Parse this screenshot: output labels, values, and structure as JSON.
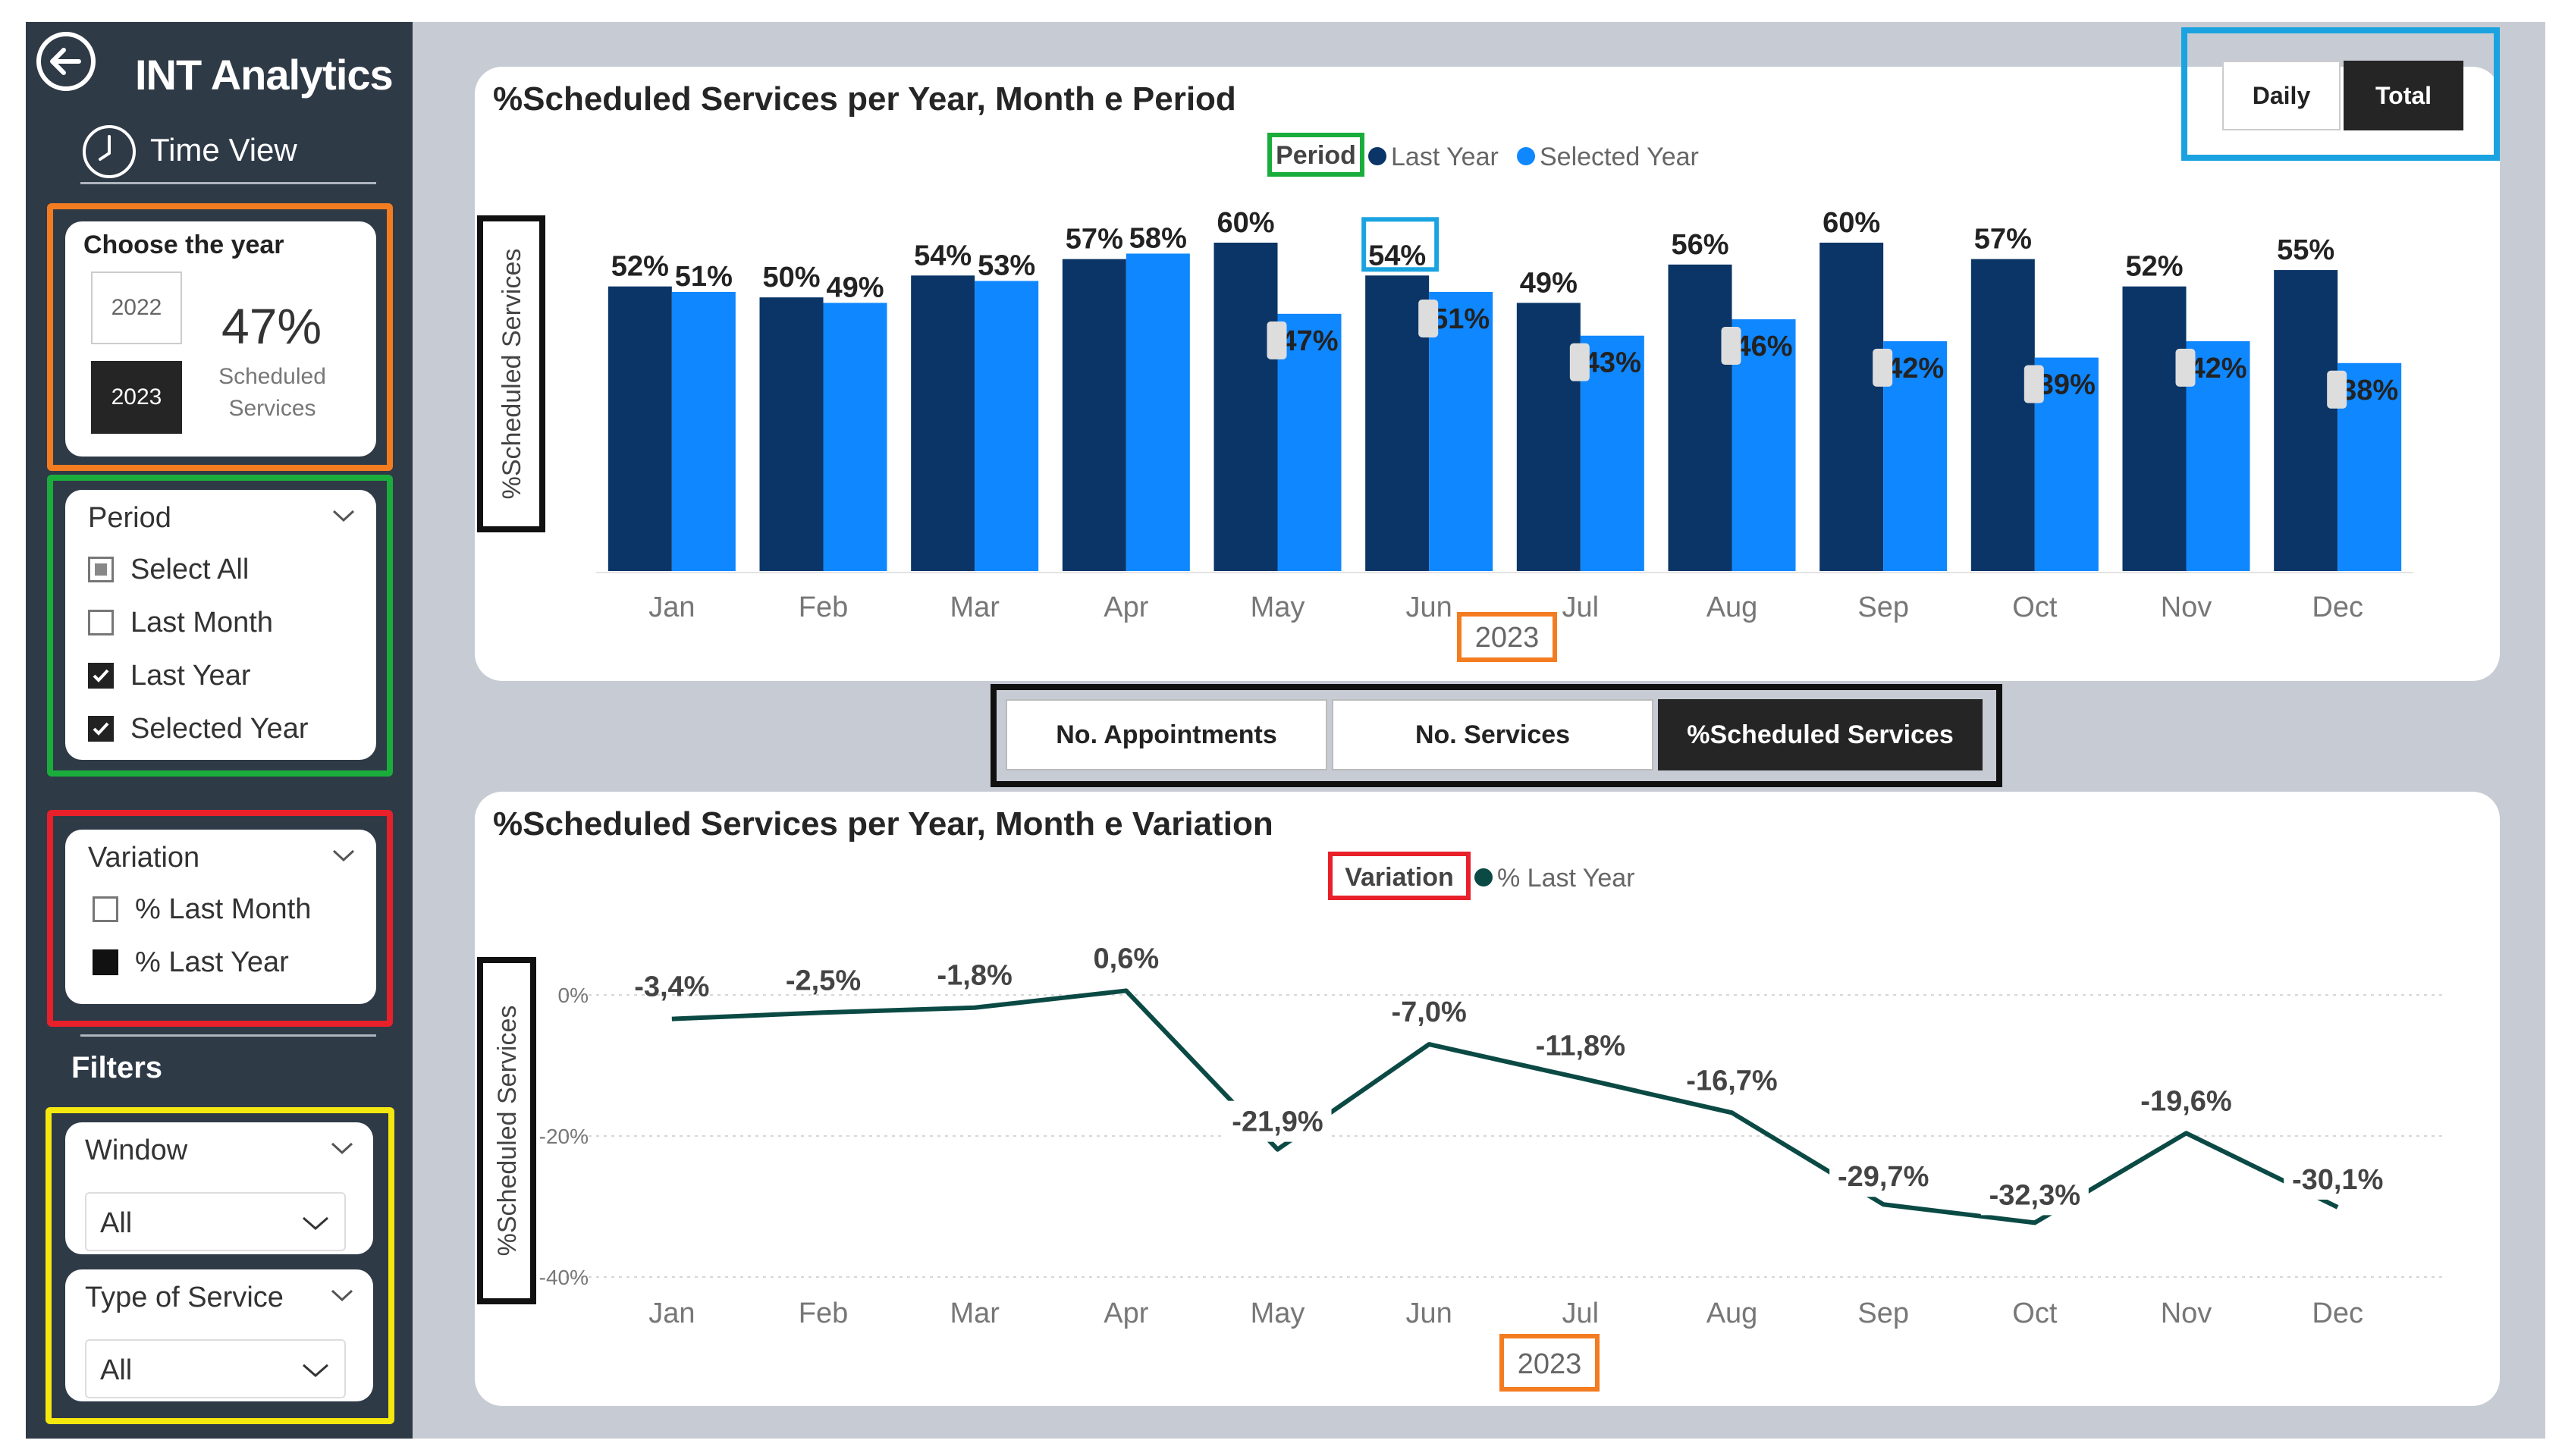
{
  "app": {
    "title": "INT Analytics",
    "nav_label": "Time View"
  },
  "year_card": {
    "title": "Choose the year",
    "years": [
      "2022",
      "2023"
    ],
    "selected_year": "2023",
    "kpi_value": "47%",
    "kpi_label_1": "Scheduled",
    "kpi_label_2": "Services"
  },
  "period_slicer": {
    "title": "Period",
    "items": [
      {
        "label": "Select All",
        "state": "partial"
      },
      {
        "label": "Last Month",
        "state": "unchecked"
      },
      {
        "label": "Last Year",
        "state": "checked"
      },
      {
        "label": "Selected Year",
        "state": "checked"
      }
    ]
  },
  "variation_slicer": {
    "title": "Variation",
    "items": [
      {
        "label": "% Last Month",
        "state": "unchecked"
      },
      {
        "label": "% Last Year",
        "state": "checked"
      }
    ]
  },
  "filters": {
    "title": "Filters",
    "window": {
      "label": "Window",
      "value": "All"
    },
    "service_type": {
      "label": "Type of Service",
      "value": "All"
    }
  },
  "toggle": {
    "daily": "Daily",
    "total": "Total",
    "active": "total"
  },
  "tabs": [
    {
      "label": "No. Appointments",
      "active": false
    },
    {
      "label": "No. Services",
      "active": false
    },
    {
      "label": "%Scheduled Services",
      "active": true
    }
  ],
  "colors": {
    "last_year": "#0a3566",
    "selected_year": "#0f87ff",
    "variation": "#0b4a44",
    "sidebar": "#2f3a47"
  },
  "chart_data": [
    {
      "type": "bar",
      "title": "%Scheduled Services per Year, Month e Period",
      "legend_title": "Period",
      "ylabel": "%Scheduled Services",
      "xlabel": "2023",
      "ylim": [
        0,
        60
      ],
      "categories": [
        "Jan",
        "Feb",
        "Mar",
        "Apr",
        "May",
        "Jun",
        "Jul",
        "Aug",
        "Sep",
        "Oct",
        "Nov",
        "Dec"
      ],
      "series": [
        {
          "name": "Last Year",
          "values": [
            52,
            50,
            54,
            57,
            60,
            54,
            49,
            56,
            60,
            57,
            52,
            55
          ],
          "labels": [
            "52%",
            "50%",
            "54%",
            "57%",
            "60%",
            "54%",
            "49%",
            "56%",
            "60%",
            "57%",
            "52%",
            "55%"
          ]
        },
        {
          "name": "Selected Year",
          "values": [
            51,
            49,
            53,
            58,
            47,
            51,
            43,
            46,
            42,
            39,
            42,
            38
          ],
          "labels": [
            "51%",
            "49%",
            "53%",
            "58%",
            "47%",
            "51%",
            "43%",
            "46%",
            "42%",
            "39%",
            "42%",
            "38%"
          ]
        }
      ]
    },
    {
      "type": "line",
      "title": "%Scheduled Services per Year, Month e Variation",
      "legend_title": "Variation",
      "ylabel": "%Scheduled Services",
      "xlabel": "2023",
      "ylim": [
        -40,
        0
      ],
      "yticks": [
        "0%",
        "-20%",
        "-40%"
      ],
      "categories": [
        "Jan",
        "Feb",
        "Mar",
        "Apr",
        "May",
        "Jun",
        "Jul",
        "Aug",
        "Sep",
        "Oct",
        "Nov",
        "Dec"
      ],
      "series": [
        {
          "name": "% Last Year",
          "values": [
            -3.4,
            -2.5,
            -1.8,
            0.6,
            -21.9,
            -7.0,
            -11.8,
            -16.7,
            -29.7,
            -32.3,
            -19.6,
            -30.1
          ],
          "labels": [
            "-3,4%",
            "-2,5%",
            "-1,8%",
            "0,6%",
            "-21,9%",
            "-7,0%",
            "-11,8%",
            "-16,7%",
            "-29,7%",
            "-32,3%",
            "-19,6%",
            "-30,1%"
          ]
        }
      ]
    }
  ]
}
